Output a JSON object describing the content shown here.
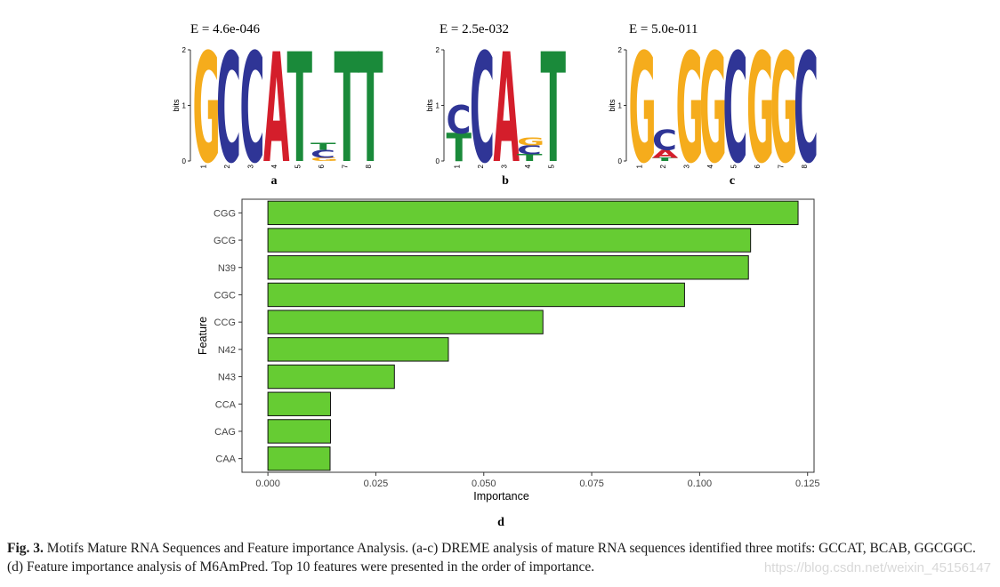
{
  "motifs": [
    {
      "label": "a",
      "evalue": "E = 4.6e-046",
      "ylabel": "bits",
      "yticks": [
        "0",
        "1",
        "2"
      ],
      "columns": [
        {
          "pos": "1",
          "letters": [
            {
              "ch": "G",
              "h": 1.95
            }
          ]
        },
        {
          "pos": "2",
          "letters": [
            {
              "ch": "C",
              "h": 1.95
            }
          ]
        },
        {
          "pos": "3",
          "letters": [
            {
              "ch": "C",
              "h": 1.95
            }
          ]
        },
        {
          "pos": "4",
          "letters": [
            {
              "ch": "A",
              "h": 1.95
            }
          ]
        },
        {
          "pos": "5",
          "letters": [
            {
              "ch": "T",
              "h": 1.95
            }
          ]
        },
        {
          "pos": "6",
          "letters": [
            {
              "ch": "G",
              "h": 0.06
            },
            {
              "ch": "C",
              "h": 0.14
            },
            {
              "ch": "T",
              "h": 0.12
            }
          ]
        },
        {
          "pos": "7",
          "letters": [
            {
              "ch": "T",
              "h": 1.95
            }
          ]
        },
        {
          "pos": "8",
          "letters": [
            {
              "ch": "T",
              "h": 1.95
            }
          ]
        }
      ]
    },
    {
      "label": "b",
      "evalue": "E = 2.5e-032",
      "ylabel": "bits",
      "yticks": [
        "0",
        "1",
        "2"
      ],
      "columns": [
        {
          "pos": "1",
          "letters": [
            {
              "ch": "T",
              "h": 0.5
            },
            {
              "ch": "C",
              "h": 0.5
            }
          ]
        },
        {
          "pos": "2",
          "letters": [
            {
              "ch": "C",
              "h": 1.95
            }
          ]
        },
        {
          "pos": "3",
          "letters": [
            {
              "ch": "A",
              "h": 1.95
            }
          ]
        },
        {
          "pos": "4",
          "letters": [
            {
              "ch": "T",
              "h": 0.12
            },
            {
              "ch": "C",
              "h": 0.16
            },
            {
              "ch": "G",
              "h": 0.14
            }
          ]
        },
        {
          "pos": "5",
          "letters": [
            {
              "ch": "T",
              "h": 1.95
            }
          ]
        }
      ]
    },
    {
      "label": "c",
      "evalue": "E = 5.0e-011",
      "ylabel": "bits",
      "yticks": [
        "0",
        "1",
        "2"
      ],
      "columns": [
        {
          "pos": "1",
          "letters": [
            {
              "ch": "G",
              "h": 1.95
            }
          ]
        },
        {
          "pos": "2",
          "letters": [
            {
              "ch": "T",
              "h": 0.06
            },
            {
              "ch": "A",
              "h": 0.14
            },
            {
              "ch": "C",
              "h": 0.36
            }
          ]
        },
        {
          "pos": "3",
          "letters": [
            {
              "ch": "G",
              "h": 1.95
            }
          ]
        },
        {
          "pos": "4",
          "letters": [
            {
              "ch": "G",
              "h": 1.95
            }
          ]
        },
        {
          "pos": "5",
          "letters": [
            {
              "ch": "C",
              "h": 1.95
            }
          ]
        },
        {
          "pos": "6",
          "letters": [
            {
              "ch": "G",
              "h": 1.95
            }
          ]
        },
        {
          "pos": "7",
          "letters": [
            {
              "ch": "G",
              "h": 1.95
            }
          ]
        },
        {
          "pos": "8",
          "letters": [
            {
              "ch": "C",
              "h": 1.95
            }
          ]
        }
      ]
    }
  ],
  "nucleotide_colors": {
    "A": "#d41e2b",
    "C": "#2f3596",
    "G": "#f5ac1c",
    "T": "#1a8a3a"
  },
  "chart_data": {
    "type": "bar",
    "orientation": "horizontal",
    "panel_label": "d",
    "categories": [
      "CGG",
      "GCG",
      "N39",
      "CGC",
      "CCG",
      "N42",
      "N43",
      "CCA",
      "CAG",
      "CAA"
    ],
    "values": [
      0.1228,
      0.1118,
      0.1113,
      0.0965,
      0.0637,
      0.0418,
      0.0293,
      0.0145,
      0.0145,
      0.0144
    ],
    "xlabel": "Importance",
    "ylabel": "Feature",
    "xlim": [
      -0.006,
      0.1265
    ],
    "xticks": [
      0.0,
      0.025,
      0.05,
      0.075,
      0.1,
      0.125
    ],
    "xtick_labels": [
      "0.000",
      "0.025",
      "0.050",
      "0.075",
      "0.100",
      "0.125"
    ],
    "bar_color": "#66cc33",
    "grid": false
  },
  "caption": {
    "prefix": "Fig. 3.",
    "text": " Motifs Mature RNA Sequences and Feature importance Analysis. (a-c) DREME analysis of mature RNA sequences identified three motifs: GCCAT, BCAB, GGCGGC. (d) Feature importance analysis of M6AmPred. Top 10 features were presented in the order of importance."
  },
  "watermark": "https://blog.csdn.net/weixin_45156147"
}
